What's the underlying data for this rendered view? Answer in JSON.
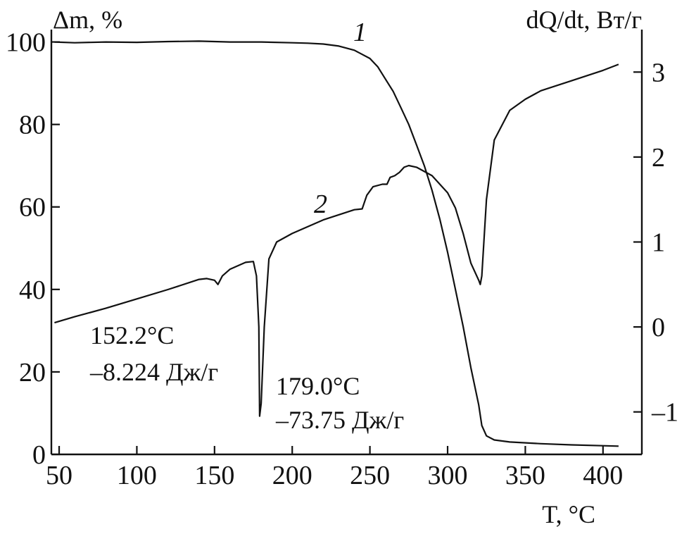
{
  "chart_data": {
    "type": "line",
    "title": "",
    "xlabel": "T, °C",
    "ylabel_left": "Δm, %",
    "ylabel_right": "dQ/dt, Вт/г",
    "xlim": [
      45,
      425
    ],
    "ylim_left": [
      0,
      103
    ],
    "ylim_right": [
      -1.5,
      3.5
    ],
    "x_ticks": [
      50,
      100,
      150,
      200,
      250,
      300,
      350,
      400
    ],
    "y_left_ticks": [
      0,
      20,
      40,
      60,
      80,
      100
    ],
    "y_right_ticks": [
      -1,
      0,
      1,
      2,
      3
    ],
    "grid": false,
    "legend": "none",
    "series": [
      {
        "name": "1",
        "axis": "left",
        "x": [
          47,
          60,
          80,
          100,
          120,
          140,
          160,
          180,
          200,
          210,
          220,
          230,
          240,
          250,
          255,
          260,
          265,
          270,
          275,
          280,
          285,
          290,
          295,
          300,
          305,
          310,
          315,
          320,
          322,
          325,
          330,
          340,
          360,
          380,
          400,
          410
        ],
        "values": [
          100,
          99.8,
          100.0,
          99.9,
          100.1,
          100.2,
          100.0,
          100.0,
          99.8,
          99.7,
          99.5,
          99.0,
          98.0,
          96.0,
          94.0,
          91.0,
          88.0,
          84.0,
          80.0,
          75.0,
          70.0,
          64.0,
          57.0,
          49.0,
          40.0,
          31.0,
          21.0,
          12.0,
          7.0,
          4.5,
          3.5,
          3.0,
          2.6,
          2.3,
          2.1,
          2.0
        ]
      },
      {
        "name": "2",
        "axis": "right",
        "x": [
          47,
          60,
          80,
          100,
          120,
          140,
          145,
          150,
          152.2,
          155,
          160,
          170,
          175,
          177,
          178.5,
          179,
          180,
          182,
          185,
          190,
          200,
          220,
          240,
          245,
          248,
          252,
          258,
          261,
          263,
          266,
          269,
          272,
          275,
          280,
          290,
          300,
          305,
          310,
          315,
          320,
          321,
          322,
          325,
          330,
          340,
          350,
          360,
          380,
          400,
          410
        ],
        "values": [
          0.05,
          0.12,
          0.22,
          0.33,
          0.44,
          0.56,
          0.57,
          0.55,
          0.5,
          0.6,
          0.68,
          0.76,
          0.77,
          0.6,
          0.0,
          -1.05,
          -0.9,
          0.0,
          0.8,
          1.0,
          1.1,
          1.26,
          1.38,
          1.39,
          1.55,
          1.65,
          1.68,
          1.68,
          1.76,
          1.78,
          1.82,
          1.88,
          1.9,
          1.88,
          1.78,
          1.58,
          1.4,
          1.1,
          0.75,
          0.55,
          0.5,
          0.6,
          1.5,
          2.2,
          2.55,
          2.68,
          2.78,
          2.9,
          3.02,
          3.09
        ]
      }
    ],
    "curve_labels": [
      "1",
      "2"
    ],
    "annotations": [
      {
        "line1": "152.2°C",
        "line2": "–8.224 Дж/г"
      },
      {
        "line1": "179.0°C",
        "line2": "–73.75 Дж/г"
      }
    ]
  }
}
